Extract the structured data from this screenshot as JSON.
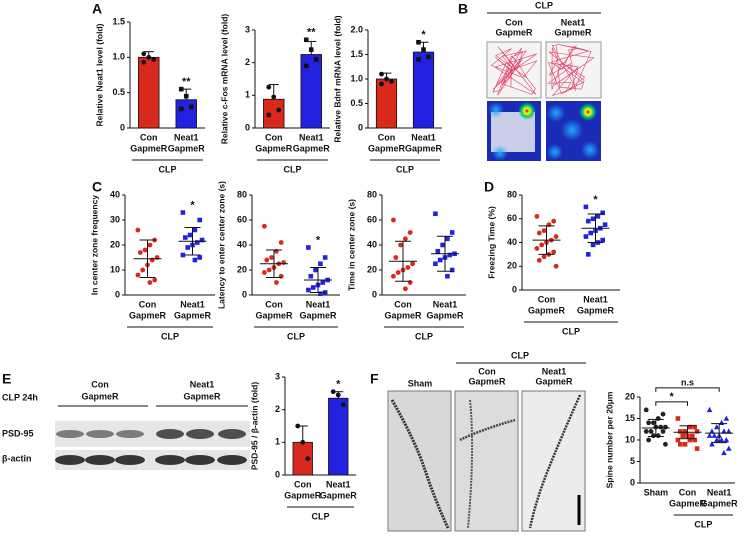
{
  "panel_letters": [
    "A",
    "B",
    "C",
    "D",
    "E",
    "F"
  ],
  "chart_data": [
    {
      "type": "bar",
      "ylabel": "Relative Neat1 level (fold)",
      "categories": [
        [
          "Con",
          "GapmeR"
        ],
        [
          "Neat1",
          "GapmeR"
        ]
      ],
      "group_label": "CLP",
      "colors": [
        "#d9291c",
        "#2222e0"
      ],
      "markers": [
        "circle",
        "square"
      ],
      "values": [
        1.0,
        0.4
      ],
      "errors": [
        0.08,
        0.15
      ],
      "points": [
        [
          1.05,
          1.0,
          0.97,
          0.93
        ],
        [
          0.55,
          0.45,
          0.3,
          0.27
        ]
      ],
      "ylim": [
        0,
        1.5
      ],
      "yticks": [
        0,
        0.5,
        {
          "value": 1,
          "label": "1.0"
        },
        1.5
      ],
      "annotations": [
        "**"
      ]
    },
    {
      "type": "bar",
      "ylabel": "Relative c-Fos mRNA level (fold)",
      "categories": [
        [
          "Con",
          "GapmeR"
        ],
        [
          "Neat1",
          "GapmeR"
        ]
      ],
      "group_label": "CLP",
      "colors": [
        "#d9291c",
        "#2222e0"
      ],
      "markers": [
        "circle",
        "square"
      ],
      "values": [
        0.88,
        2.25
      ],
      "errors": [
        0.45,
        0.4
      ],
      "points": [
        [
          1.25,
          0.95,
          0.55,
          0.4
        ],
        [
          2.7,
          2.4,
          2.1,
          1.9
        ]
      ],
      "ylim": [
        0,
        3
      ],
      "yticks": [
        0,
        1,
        2,
        3
      ],
      "annotations": [
        "**"
      ]
    },
    {
      "type": "bar",
      "ylabel": "Relative Bdnf mRNA level (fold)",
      "categories": [
        [
          "Con",
          "GapmeR"
        ],
        [
          "Neat1",
          "GapmeR"
        ]
      ],
      "group_label": "CLP",
      "colors": [
        "#d9291c",
        "#2222e0"
      ],
      "markers": [
        "circle",
        "square"
      ],
      "values": [
        1.0,
        1.55
      ],
      "errors": [
        0.12,
        0.2
      ],
      "points": [
        [
          1.1,
          1.0,
          0.95,
          0.9
        ],
        [
          1.75,
          1.6,
          1.45,
          1.4
        ]
      ],
      "ylim": [
        0,
        2
      ],
      "yticks": [
        0,
        0.5,
        {
          "value": 1,
          "label": "1.0"
        },
        1.5,
        {
          "value": 2,
          "label": "2.0"
        }
      ],
      "annotations": [
        "*"
      ]
    },
    {
      "type": "dot",
      "ylabel": "In center zone frequency",
      "categories": [
        [
          "Con",
          "GapmeR"
        ],
        [
          "Neat1",
          "GapmeR"
        ]
      ],
      "group_label": "CLP",
      "colors": [
        "#d9291c",
        "#2222e0"
      ],
      "markers": [
        "circle",
        "square"
      ],
      "values": [
        14.5,
        21.5
      ],
      "errors": [
        7.5,
        5.5
      ],
      "points": [
        [
          26,
          22,
          20,
          18,
          17,
          15,
          14,
          12,
          10,
          8,
          6,
          5
        ],
        [
          33,
          30,
          26,
          24,
          23,
          22,
          21,
          20,
          19,
          16,
          15,
          14
        ]
      ],
      "ylim": [
        0,
        40
      ],
      "yticks": [
        0,
        10,
        20,
        30,
        40
      ],
      "annotations": [
        "*"
      ]
    },
    {
      "type": "dot",
      "ylabel": "Latency to enter center zone (s)",
      "categories": [
        [
          "Con",
          "GapmeR"
        ],
        [
          "Neat1",
          "GapmeR"
        ]
      ],
      "group_label": "CLP",
      "colors": [
        "#d9291c",
        "#2222e0"
      ],
      "markers": [
        "circle",
        "square"
      ],
      "values": [
        25,
        12
      ],
      "errors": [
        11,
        10
      ],
      "points": [
        [
          55,
          42,
          35,
          30,
          28,
          26,
          25,
          22,
          20,
          18,
          15,
          10
        ],
        [
          38,
          30,
          25,
          20,
          15,
          12,
          10,
          8,
          6,
          4,
          2,
          1
        ]
      ],
      "ylim": [
        0,
        80
      ],
      "yticks": [
        0,
        20,
        40,
        60,
        80
      ],
      "annotations": [
        "*"
      ]
    },
    {
      "type": "dot",
      "ylabel": "Time in center zone (s)",
      "categories": [
        [
          "Con",
          "GapmeR"
        ],
        [
          "Neat1",
          "GapmeR"
        ]
      ],
      "group_label": "CLP",
      "colors": [
        "#d9291c",
        "#2222e0"
      ],
      "markers": [
        "circle",
        "square"
      ],
      "values": [
        27,
        33
      ],
      "errors": [
        16,
        14
      ],
      "points": [
        [
          60,
          50,
          45,
          40,
          30,
          25,
          22,
          20,
          18,
          15,
          10,
          5
        ],
        [
          65,
          50,
          45,
          40,
          35,
          33,
          32,
          30,
          28,
          25,
          20,
          15
        ]
      ],
      "ylim": [
        0,
        80
      ],
      "yticks": [
        0,
        20,
        40,
        60,
        80
      ],
      "annotations": []
    },
    {
      "type": "dot",
      "ylabel": "Freezing Time (%)",
      "categories": [
        [
          "Con",
          "GapmeR"
        ],
        [
          "Neat1",
          "GapmeR"
        ]
      ],
      "group_label": "CLP",
      "colors": [
        "#d9291c",
        "#2222e0"
      ],
      "markers": [
        "circle",
        "square"
      ],
      "values": [
        42,
        52
      ],
      "errors": [
        12,
        12
      ],
      "points": [
        [
          62,
          58,
          55,
          50,
          48,
          45,
          42,
          40,
          38,
          35,
          32,
          30,
          28,
          25,
          20
        ],
        [
          70,
          65,
          62,
          60,
          58,
          55,
          52,
          50,
          48,
          45,
          42,
          40,
          38,
          30
        ]
      ],
      "ylim": [
        0,
        80
      ],
      "yticks": [
        0,
        20,
        40,
        60,
        80
      ],
      "annotations": [
        "*"
      ]
    },
    {
      "type": "bar",
      "ylabel": "PSD-95 / β-actin (fold)",
      "categories": [
        [
          "Con",
          "GapmeR"
        ],
        [
          "Neat1",
          "GapmeR"
        ]
      ],
      "group_label": "CLP",
      "colors": [
        "#d9291c",
        "#2222e0"
      ],
      "markers": [
        "circle",
        "circle"
      ],
      "values": [
        1.0,
        2.35
      ],
      "errors": [
        0.5,
        0.2
      ],
      "points": [
        [
          1.5,
          1.0,
          0.5
        ],
        [
          2.55,
          2.45,
          2.15
        ]
      ],
      "ylim": [
        0,
        3
      ],
      "yticks": [
        0,
        1,
        2,
        3
      ],
      "annotations": [
        "*"
      ]
    },
    {
      "type": "dot",
      "ylabel": "Spine number per 20μm",
      "categories": [
        [
          "Sham"
        ],
        [
          "Con",
          "GapmeR"
        ],
        [
          "Neat1",
          "GapmeR"
        ]
      ],
      "group_label": "CLP",
      "colors": [
        "#222222",
        "#d9291c",
        "#2222e0"
      ],
      "markers": [
        "circle",
        "square",
        "triangle"
      ],
      "values": [
        12.8,
        11.8,
        11.6
      ],
      "errors": [
        2,
        1.5,
        2.2
      ],
      "points": [
        [
          17,
          16,
          15,
          14,
          14,
          13,
          13,
          13,
          12,
          12,
          12,
          11,
          11,
          10,
          9
        ],
        [
          15,
          13,
          13,
          12,
          12,
          12,
          11,
          11,
          11,
          10,
          10,
          10,
          9,
          9,
          8
        ],
        [
          17,
          15,
          14,
          13,
          12,
          12,
          12,
          11,
          11,
          11,
          10,
          10,
          10,
          9,
          8,
          7
        ]
      ],
      "ylim": [
        0,
        20
      ],
      "yticks": [
        0,
        5,
        10,
        15,
        20
      ],
      "annotations": [
        "*",
        "n.s"
      ]
    }
  ],
  "panel_B": {
    "group": "CLP",
    "columns": [
      [
        "Con",
        "GapmeR"
      ],
      [
        "Neat1",
        "GapmeR"
      ]
    ]
  },
  "panel_E": {
    "condition": "CLP 24h",
    "groups": [
      [
        "Con",
        "GapmeR"
      ],
      [
        "Neat1",
        "GapmeR"
      ]
    ],
    "rows": [
      "PSD-95",
      "β-actin"
    ]
  },
  "panel_F": {
    "group": "CLP",
    "columns": [
      [
        "Sham"
      ],
      [
        "Con",
        "GapmeR"
      ],
      [
        "Neat1",
        "GapmeR"
      ]
    ]
  }
}
